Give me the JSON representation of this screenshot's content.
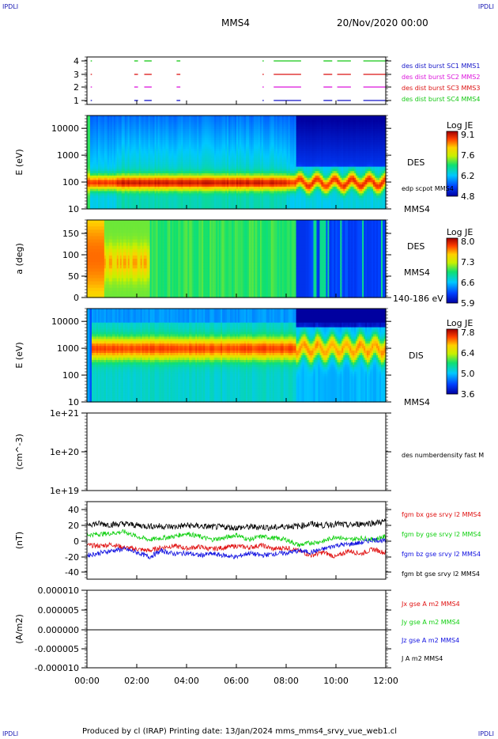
{
  "header": {
    "corner_left_top": "IPDLI",
    "corner_right_top": "IPDLI",
    "corner_left_bottom": "IPDLI",
    "corner_right_bottom": "IPDLI",
    "spacecraft": "MMS4",
    "datetime": "20/Nov/2020 00:00"
  },
  "footer": {
    "text": "Produced by cl (IRAP)   Printing date: 13/Jan/2024   mms_mms4_srvy_vue_web1.cl"
  },
  "colors": {
    "mms1": "#1414c8",
    "mms2": "#dc14dc",
    "mms3": "#dc1414",
    "mms4": "#14c814",
    "bx": "#e01010",
    "by": "#10d010",
    "bz": "#1010e0",
    "bt": "#000000"
  },
  "chart_data": [
    {
      "id": "burst",
      "type": "timeline",
      "ylim": [
        0.5,
        4.5
      ],
      "y_ticks": [
        "1",
        "2",
        "3",
        "4"
      ],
      "series": [
        {
          "name": "des dist burst SC1 MMS1",
          "level": 1,
          "color": "#1414c8"
        },
        {
          "name": "des dist burst SC2 MMS2",
          "level": 2,
          "color": "#dc14dc"
        },
        {
          "name": "des dist burst SC3 MMS3",
          "level": 3,
          "color": "#dc1414"
        },
        {
          "name": "des dist burst SC4 MMS4",
          "level": 4,
          "color": "#14c814"
        }
      ],
      "intervals_hours": [
        [
          0.15,
          0.2
        ],
        [
          1.9,
          2.05
        ],
        [
          2.3,
          2.6
        ],
        [
          3.6,
          3.75
        ],
        [
          7.05,
          7.1
        ],
        [
          7.5,
          8.6
        ],
        [
          9.5,
          9.85
        ],
        [
          10.05,
          10.6
        ],
        [
          11.1,
          12.0
        ]
      ]
    },
    {
      "id": "des_energy",
      "type": "heatmap",
      "ylabel": "E (eV)",
      "y_ticks": [
        "10",
        "100",
        "1000",
        "10000"
      ],
      "labels": [
        "DES",
        "edp scpot MMS4",
        "MMS4"
      ],
      "colorbar": {
        "title": "Log JE",
        "ticks": [
          "9.1",
          "7.6",
          "6.2",
          "4.8"
        ]
      }
    },
    {
      "id": "des_pitch",
      "type": "heatmap",
      "ylabel": "a (deg)",
      "y_ticks": [
        "0",
        "50",
        "100",
        "150"
      ],
      "labels": [
        "DES",
        "MMS4",
        "140-186 eV"
      ],
      "colorbar": {
        "title": "Log JE",
        "ticks": [
          "8.0",
          "7.3",
          "6.6",
          "5.9"
        ]
      }
    },
    {
      "id": "dis_energy",
      "type": "heatmap",
      "ylabel": "E (eV)",
      "y_ticks": [
        "10",
        "100",
        "1000",
        "10000"
      ],
      "labels": [
        "DIS",
        "MMS4"
      ],
      "colorbar": {
        "title": "Log JE",
        "ticks": [
          "7.8",
          "6.4",
          "5.0",
          "3.6"
        ]
      }
    },
    {
      "id": "density",
      "type": "line",
      "ylabel": "(cm^-3)",
      "y_ticks": [
        "1e+19",
        "1e+20",
        "1e+21"
      ],
      "series": [
        {
          "name": "des numberdensity fast M",
          "values": []
        }
      ]
    },
    {
      "id": "fgm",
      "type": "line",
      "ylabel": "(nT)",
      "ylim": [
        -48,
        48
      ],
      "y_ticks": [
        "-40",
        "-20",
        "0",
        "20",
        "40"
      ],
      "x": [
        0,
        0.5,
        1,
        1.5,
        2,
        2.5,
        3,
        3.5,
        4,
        4.5,
        5,
        5.5,
        6,
        6.5,
        7,
        7.5,
        8,
        8.5,
        9,
        9.5,
        10,
        10.5,
        11,
        11.5,
        12
      ],
      "series": [
        {
          "name": "fgm bx gse srvy l2 MMS4",
          "color": "#e01010",
          "values": [
            -5,
            -6,
            -4,
            -8,
            -10,
            -12,
            -8,
            -6,
            -9,
            -7,
            -10,
            -8,
            -6,
            -8,
            -5,
            -10,
            -8,
            -12,
            -18,
            -14,
            -20,
            -12,
            -16,
            -10,
            -15
          ]
        },
        {
          "name": "fgm by gse srvy l2 MMS4",
          "color": "#10d010",
          "values": [
            8,
            9,
            10,
            12,
            6,
            2,
            4,
            6,
            10,
            6,
            2,
            4,
            8,
            2,
            6,
            4,
            2,
            -5,
            -2,
            0,
            6,
            2,
            4,
            2,
            6
          ]
        },
        {
          "name": "fgm bz gse srvy l2 MMS4",
          "color": "#1010e0",
          "values": [
            -18,
            -15,
            -12,
            -10,
            -14,
            -20,
            -12,
            -16,
            -15,
            -18,
            -16,
            -18,
            -20,
            -15,
            -18,
            -16,
            -15,
            -12,
            -14,
            -10,
            -5,
            -4,
            -2,
            2,
            0
          ]
        },
        {
          "name": "fgm bt gse srvy l2 MMS4",
          "color": "#000000",
          "values": [
            22,
            22,
            21,
            22,
            20,
            19,
            19,
            18,
            20,
            19,
            18,
            18,
            17,
            18,
            18,
            17,
            19,
            19,
            22,
            20,
            22,
            20,
            22,
            23,
            25
          ]
        }
      ]
    },
    {
      "id": "current",
      "type": "line",
      "ylabel": "(A/m2)",
      "ylim": [
        -1e-05,
        1e-05
      ],
      "y_ticks": [
        "0.000010",
        "0.000005",
        "0.000000",
        "-0.000005",
        "-0.000010"
      ],
      "x_ticks": [
        "00:00",
        "02:00",
        "04:00",
        "06:00",
        "08:00",
        "10:00",
        "12:00"
      ],
      "series": [
        {
          "name": "Jx gse A m2 MMS4",
          "color": "#e01010",
          "values": [
            0,
            0,
            0,
            0,
            0,
            0,
            0
          ]
        },
        {
          "name": "Jy gse A m2 MMS4",
          "color": "#10d010",
          "values": [
            0,
            0,
            0,
            0,
            0,
            0,
            0
          ]
        },
        {
          "name": "Jz gse A m2 MMS4",
          "color": "#1010e0",
          "values": [
            0,
            0,
            0,
            0,
            0,
            0,
            0
          ]
        },
        {
          "name": "J A m2 MMS4",
          "color": "#000000",
          "values": [
            0,
            0,
            0,
            0,
            0,
            0,
            0
          ]
        }
      ]
    }
  ]
}
